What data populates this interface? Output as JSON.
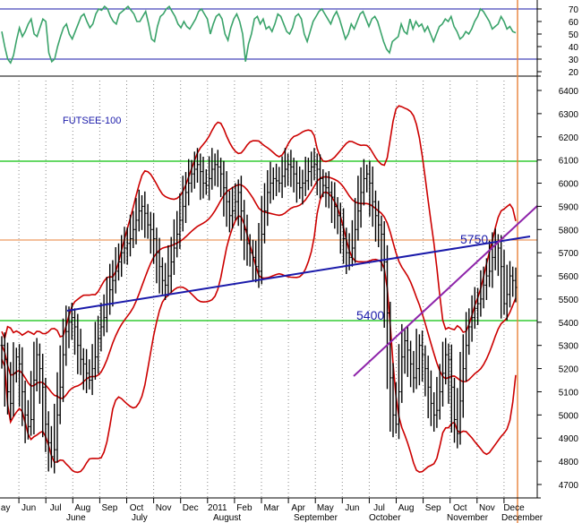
{
  "chart_data": {
    "type": "line",
    "title": "FUTSEE-100",
    "rsi": {
      "ticks": [
        "70",
        "60",
        "50",
        "40",
        "30",
        "20"
      ],
      "ylim": [
        15,
        75
      ],
      "levels": [
        70,
        30
      ],
      "series": [
        52,
        40,
        30,
        27,
        33,
        45,
        55,
        48,
        52,
        58,
        62,
        50,
        48,
        55,
        62,
        60,
        35,
        28,
        30,
        40,
        48,
        55,
        58,
        50,
        46,
        52,
        58,
        64,
        66,
        60,
        55,
        58,
        66,
        70,
        69,
        72,
        70,
        64,
        60,
        58,
        66,
        68,
        70,
        72,
        69,
        66,
        60,
        60,
        64,
        68,
        58,
        46,
        44,
        56,
        64,
        66,
        70,
        72,
        68,
        64,
        58,
        55,
        60,
        56,
        54,
        58,
        62,
        68,
        70,
        66,
        62,
        50,
        58,
        64,
        66,
        62,
        50,
        45,
        55,
        62,
        66,
        60,
        50,
        28,
        42,
        50,
        62,
        64,
        58,
        62,
        54,
        56,
        52,
        58,
        66,
        64,
        58,
        52,
        50,
        55,
        64,
        66,
        62,
        50,
        44,
        52,
        60,
        64,
        68,
        70,
        66,
        62,
        58,
        64,
        68,
        62,
        54,
        46,
        50,
        58,
        54,
        60,
        66,
        68,
        62,
        56,
        62,
        64,
        60,
        52,
        44,
        38,
        35,
        44,
        46,
        48,
        58,
        52,
        50,
        62,
        54,
        60,
        56,
        58,
        52,
        56,
        50,
        44,
        50,
        56,
        58,
        62,
        60,
        64,
        56,
        52,
        46,
        48,
        52,
        50,
        54,
        60,
        64,
        70,
        68,
        64,
        60,
        54,
        56,
        58,
        64,
        60,
        54,
        56,
        52,
        51
      ]
    },
    "price": {
      "ticks": [
        "6400",
        "6300",
        "6200",
        "6100",
        "6000",
        "5900",
        "5800",
        "5700",
        "5600",
        "5500",
        "5400",
        "5300",
        "5200",
        "5100",
        "5000",
        "4900",
        "4800",
        "4700"
      ],
      "ylim": [
        4650,
        6450
      ],
      "closes": [
        5300,
        5240,
        5100,
        5050,
        5180,
        5250,
        5220,
        5100,
        5000,
        4950,
        4980,
        5150,
        5260,
        5200,
        5120,
        4960,
        4880,
        4820,
        4850,
        5000,
        5120,
        5260,
        5360,
        5400,
        5420,
        5380,
        5300,
        5240,
        5220,
        5180,
        5150,
        5200,
        5250,
        5330,
        5380,
        5420,
        5480,
        5540,
        5580,
        5620,
        5660,
        5700,
        5720,
        5740,
        5760,
        5800,
        5840,
        5880,
        5900,
        5870,
        5820,
        5800,
        5760,
        5700,
        5640,
        5580,
        5560,
        5600,
        5660,
        5720,
        5780,
        5840,
        5900,
        5960,
        6000,
        6040,
        6060,
        6080,
        6050,
        6000,
        5990,
        6020,
        6060,
        6080,
        6070,
        6040,
        5980,
        5920,
        5860,
        5880,
        5920,
        5960,
        5880,
        5800,
        5740,
        5700,
        5680,
        5640,
        5620,
        5780,
        5880,
        5960,
        6000,
        6020,
        6010,
        6000,
        6030,
        6060,
        6080,
        6070,
        6040,
        6000,
        5980,
        6000,
        6010,
        6050,
        6070,
        6080,
        6060,
        6020,
        5990,
        5980,
        5960,
        5940,
        5900,
        5860,
        5820,
        5760,
        5700,
        5680,
        5720,
        5800,
        5880,
        5960,
        6020,
        6040,
        6000,
        5920,
        5860,
        5820,
        5780,
        5660,
        5440,
        5160,
        5000,
        4960,
        5100,
        5250,
        5320,
        5280,
        5220,
        5160,
        5200,
        5300,
        5260,
        5200,
        5120,
        5050,
        5000,
        5020,
        5100,
        5180,
        5260,
        5240,
        5120,
        4980,
        4920,
        5060,
        5200,
        5300,
        5380,
        5420,
        5460,
        5480,
        5500,
        5560,
        5600,
        5620,
        5680,
        5740,
        5720,
        5640,
        5480,
        5520,
        5600,
        5580,
        5550
      ]
    },
    "lines": {
      "support": "5400",
      "resistance": "5750"
    },
    "x_months": [
      "May",
      "Jun",
      "Jul",
      "Aug",
      "Sep",
      "Oct",
      "Nov",
      "Dec",
      "2011",
      "Feb",
      "Mar",
      "Apr",
      "May",
      "Jun",
      "Jul",
      "Aug",
      "Sep",
      "Oct",
      "Nov",
      "Dece"
    ],
    "x_months_lower": [
      "June",
      "July",
      "August",
      "September",
      "October",
      "November",
      "December"
    ],
    "colors": {
      "price": "#000000",
      "bollinger": "#cc0000",
      "rsi": "#3aa36a",
      "trend": "#1a1aaa",
      "channel": "#8e24aa",
      "horizontal": "#33cc33",
      "orange": "#e8823a",
      "grid": "#777777"
    }
  }
}
